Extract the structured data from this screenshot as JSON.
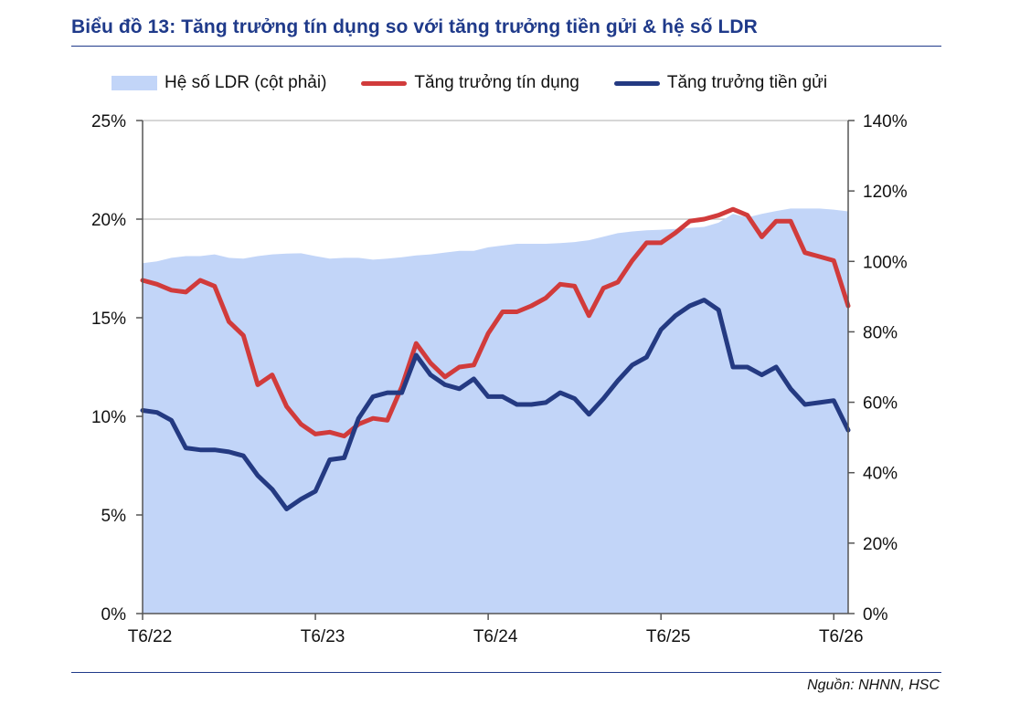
{
  "header": {
    "title": "Biểu đồ 13: Tăng trưởng tín dụng so với tăng trưởng tiền gửi & hệ số LDR",
    "source": "Nguồn: NHNN, HSC"
  },
  "legend": {
    "ldr": "Hệ số LDR (cột phải)",
    "credit": "Tăng trưởng tín dụng",
    "deposit": "Tăng trưởng tiền gửi"
  },
  "colors": {
    "ldr_area": "#c2d5f8",
    "credit_line": "#d13b3b",
    "deposit_line": "#243a82",
    "grid": "#c8c8c8",
    "axis": "#555555"
  },
  "chart_data": {
    "type": "line",
    "x_tick_labels": [
      "T6/22",
      "T6/23",
      "T6/24",
      "T6/25",
      "T6/26"
    ],
    "x_tick_index": [
      0,
      12,
      24,
      36,
      48
    ],
    "y_left": {
      "ticks": [
        "0%",
        "5%",
        "10%",
        "15%",
        "20%",
        "25%"
      ],
      "range": [
        0,
        25
      ]
    },
    "y_right": {
      "ticks": [
        "0%",
        "20%",
        "40%",
        "60%",
        "80%",
        "100%",
        "120%",
        "140%"
      ],
      "range": [
        0,
        140
      ]
    },
    "grid": "horizontal",
    "legend_position": "top",
    "series": [
      {
        "name": "Hệ số LDR (cột phải)",
        "type": "area",
        "axis": "right",
        "values": [
          99.5,
          100,
          101,
          101.5,
          101.5,
          102,
          101,
          100.8,
          101.5,
          102,
          102.2,
          102.3,
          101.5,
          100.8,
          101,
          101,
          100.5,
          100.8,
          101.2,
          101.7,
          102,
          102.5,
          103,
          103,
          104,
          104.5,
          105,
          105,
          105,
          105.2,
          105.5,
          106,
          107,
          108,
          108.5,
          108.8,
          109,
          109.2,
          109.5,
          109.8,
          111,
          113.5,
          112.5,
          113.5,
          114.3,
          115,
          115,
          115,
          114.7,
          114.2
        ]
      },
      {
        "name": "Tăng trưởng tín dụng",
        "type": "line",
        "axis": "left",
        "values": [
          16.9,
          16.7,
          16.4,
          16.3,
          16.9,
          16.6,
          14.8,
          14.1,
          11.6,
          12.1,
          10.5,
          9.6,
          9.1,
          9.2,
          9.0,
          9.6,
          9.9,
          9.8,
          11.5,
          13.7,
          12.7,
          12.0,
          12.5,
          12.6,
          14.2,
          15.3,
          15.3,
          15.6,
          16.0,
          16.7,
          16.6,
          15.1,
          16.5,
          16.8,
          17.9,
          18.8,
          18.8,
          19.3,
          19.9,
          20.0,
          20.2,
          20.5,
          20.2,
          19.1,
          19.9,
          19.9,
          18.3,
          18.1,
          17.9,
          15.6
        ]
      },
      {
        "name": "Tăng trưởng tiền gửi",
        "type": "line",
        "axis": "left",
        "values": [
          10.3,
          10.2,
          9.8,
          8.4,
          8.3,
          8.3,
          8.2,
          8.0,
          7.0,
          6.3,
          5.3,
          5.8,
          6.2,
          7.8,
          7.9,
          9.9,
          11.0,
          11.2,
          11.2,
          13.1,
          12.1,
          11.6,
          11.4,
          11.9,
          11.0,
          11.0,
          10.6,
          10.6,
          10.7,
          11.2,
          10.9,
          10.1,
          10.9,
          11.8,
          12.6,
          13.0,
          14.4,
          15.1,
          15.6,
          15.9,
          15.4,
          12.5,
          12.5,
          12.1,
          12.5,
          11.4,
          10.6,
          10.7,
          10.8,
          9.3
        ]
      }
    ]
  }
}
